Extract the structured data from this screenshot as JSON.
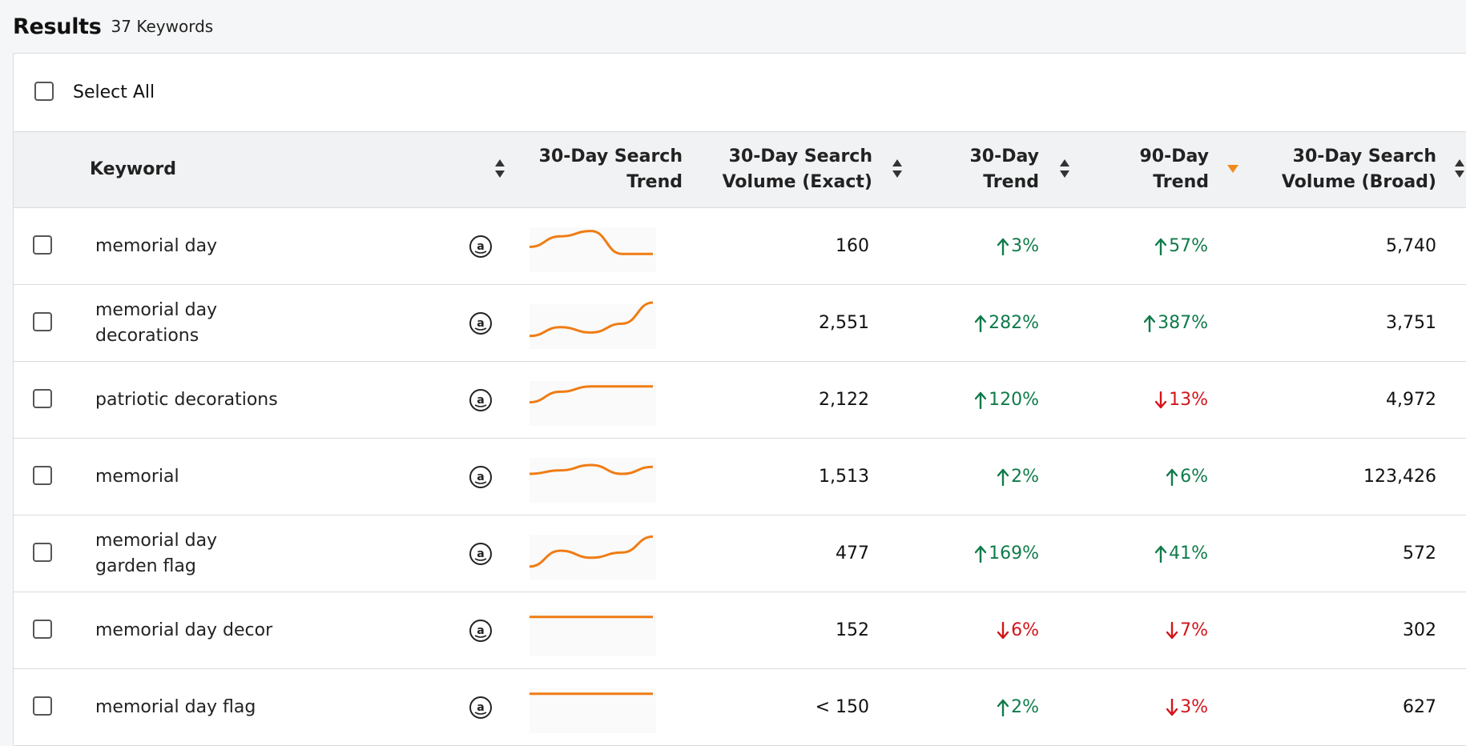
{
  "header": {
    "title": "Results",
    "count": "37 Keywords"
  },
  "select_all": {
    "label": "Select All"
  },
  "columns": {
    "keyword": "Keyword",
    "search_trend": "30-Day Search Trend",
    "volume_exact": "30-Day Search Volume (Exact)",
    "trend_30": "30-Day Trend",
    "trend_90": "90-Day Trend",
    "volume_broad": "30-Day Search Volume (Broad)"
  },
  "colors": {
    "up": "#0f7b4a",
    "down": "#d4141b",
    "sparkline": "#f07c14",
    "sort_active": "#f08a1c"
  },
  "rows": [
    {
      "keyword": "memorial day",
      "volume_exact": "160",
      "trend_30": "3%",
      "trend_30_dir": "up",
      "trend_90": "57%",
      "trend_90_dir": "up",
      "volume_broad": "5,740",
      "spark": [
        0.4,
        0.7,
        0.85,
        0.2,
        0.2
      ]
    },
    {
      "keyword": "memorial day decorations",
      "volume_exact": "2,551",
      "trend_30": "282%",
      "trend_30_dir": "up",
      "trend_90": "387%",
      "trend_90_dir": "up",
      "volume_broad": "3,751",
      "spark": [
        0.05,
        0.3,
        0.15,
        0.4,
        1.0
      ]
    },
    {
      "keyword": "patriotic decorations",
      "volume_exact": "2,122",
      "trend_30": "120%",
      "trend_30_dir": "up",
      "trend_90": "13%",
      "trend_90_dir": "down",
      "volume_broad": "4,972",
      "spark": [
        0.35,
        0.65,
        0.8,
        0.8,
        0.8
      ]
    },
    {
      "keyword": "memorial",
      "volume_exact": "1,513",
      "trend_30": "2%",
      "trend_30_dir": "up",
      "trend_90": "6%",
      "trend_90_dir": "up",
      "volume_broad": "123,426",
      "spark": [
        0.5,
        0.6,
        0.75,
        0.5,
        0.7
      ]
    },
    {
      "keyword": "memorial day garden flag",
      "volume_exact": "477",
      "trend_30": "169%",
      "trend_30_dir": "up",
      "trend_90": "41%",
      "trend_90_dir": "up",
      "volume_broad": "572",
      "spark": [
        0.05,
        0.5,
        0.3,
        0.45,
        0.9
      ]
    },
    {
      "keyword": "memorial day decor",
      "volume_exact": "152",
      "trend_30": "6%",
      "trend_30_dir": "down",
      "trend_90": "7%",
      "trend_90_dir": "down",
      "volume_broad": "302",
      "spark": [
        0.8,
        0.8,
        0.8,
        0.8,
        0.8
      ]
    },
    {
      "keyword": "memorial day flag",
      "volume_exact": "< 150",
      "trend_30": "2%",
      "trend_30_dir": "up",
      "trend_90": "3%",
      "trend_90_dir": "down",
      "volume_broad": "627",
      "spark": [
        0.8,
        0.8,
        0.8,
        0.8,
        0.8
      ]
    }
  ]
}
